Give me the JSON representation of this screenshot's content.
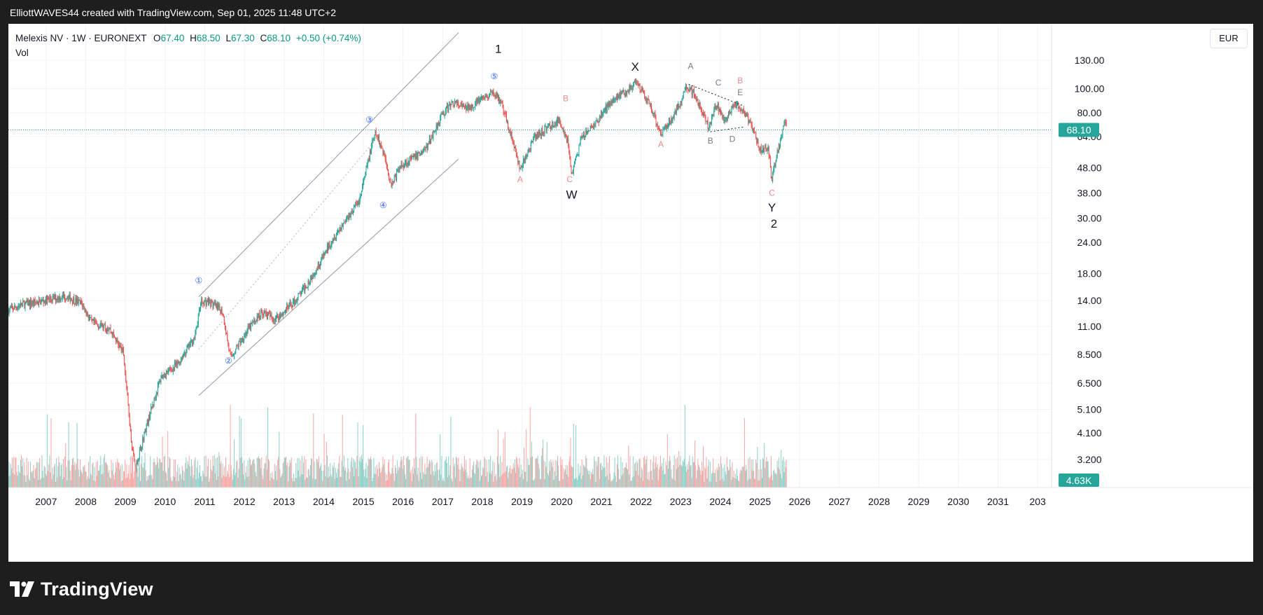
{
  "caption": "ElliottWAVES44 created with TradingView.com, Sep 01, 2025 11:48 UTC+2",
  "legend": {
    "symbol": "Melexis NV · 1W · EURONEXT",
    "o_label": "O",
    "o": "67.40",
    "h_label": "H",
    "h": "68.50",
    "l_label": "L",
    "l": "67.30",
    "c_label": "C",
    "c": "68.10",
    "change": "+0.50 (+0.74%)",
    "vol_label": "Vol"
  },
  "currency": "EUR",
  "price_badge": "68.10",
  "volume_badge": "4.63K",
  "logo_text": "TradingView",
  "colors": {
    "up": "#26a69a",
    "down": "#ef5350",
    "vol_up": "#8ed0c8",
    "vol_down": "#f5a7a5",
    "wave_blue": "#2962ff",
    "wave_red": "#f28c8c",
    "badge": "#26a69a"
  },
  "chart_data": {
    "type": "candlestick",
    "scale": "log",
    "currency": "EUR",
    "x_axis_years": [
      "2007",
      "2008",
      "2009",
      "2010",
      "2011",
      "2012",
      "2013",
      "2014",
      "2015",
      "2016",
      "2017",
      "2018",
      "2019",
      "2020",
      "2021",
      "2022",
      "2023",
      "2024",
      "2025",
      "2026",
      "2027",
      "2028",
      "2029",
      "2030",
      "2031",
      "203"
    ],
    "price_ticks": [
      "130.00",
      "100.00",
      "80.00",
      "64.00",
      "48.00",
      "38.00",
      "30.00",
      "24.00",
      "18.00",
      "14.00",
      "11.00",
      "8.500",
      "6.500",
      "5.100",
      "4.100",
      "3.200"
    ],
    "price_tick_values": [
      130,
      100,
      80,
      64,
      48,
      38,
      30,
      24,
      18,
      14,
      11,
      8.5,
      6.5,
      5.1,
      4.1,
      3.2
    ],
    "ylim": [
      2.85,
      150
    ],
    "xlim": [
      2006.05,
      2032.35
    ],
    "last_close": 68.1,
    "last_volume": "4.63K",
    "price_path": [
      [
        2006.05,
        12.8
      ],
      [
        2006.4,
        13.5
      ],
      [
        2006.8,
        13.8
      ],
      [
        2007.2,
        14.3
      ],
      [
        2007.5,
        14.6
      ],
      [
        2007.9,
        13.6
      ],
      [
        2008.15,
        11.4
      ],
      [
        2008.6,
        10.8
      ],
      [
        2008.95,
        8.6
      ],
      [
        2009.15,
        3.8
      ],
      [
        2009.25,
        2.95
      ],
      [
        2009.55,
        4.5
      ],
      [
        2009.9,
        6.9
      ],
      [
        2010.3,
        7.7
      ],
      [
        2010.75,
        10.0
      ],
      [
        2010.9,
        13.7
      ],
      [
        2011.1,
        13.9
      ],
      [
        2011.45,
        12.6
      ],
      [
        2011.65,
        8.2
      ],
      [
        2011.95,
        9.9
      ],
      [
        2012.2,
        11.3
      ],
      [
        2012.45,
        12.6
      ],
      [
        2012.75,
        11.8
      ],
      [
        2012.95,
        12.4
      ],
      [
        2013.3,
        14.1
      ],
      [
        2013.6,
        16.5
      ],
      [
        2013.95,
        20.5
      ],
      [
        2014.2,
        24.5
      ],
      [
        2014.55,
        29.5
      ],
      [
        2014.9,
        35.5
      ],
      [
        2015.2,
        58.0
      ],
      [
        2015.3,
        66.0
      ],
      [
        2015.5,
        56.0
      ],
      [
        2015.7,
        41.0
      ],
      [
        2015.95,
        49.0
      ],
      [
        2016.3,
        53.0
      ],
      [
        2016.6,
        58.0
      ],
      [
        2016.95,
        77.0
      ],
      [
        2017.25,
        88.0
      ],
      [
        2017.6,
        83.0
      ],
      [
        2017.95,
        90.0
      ],
      [
        2018.3,
        96.0
      ],
      [
        2018.45,
        89.0
      ],
      [
        2018.75,
        63.0
      ],
      [
        2018.95,
        47.0
      ],
      [
        2019.3,
        63.0
      ],
      [
        2019.65,
        70.0
      ],
      [
        2019.95,
        74.0
      ],
      [
        2020.15,
        62.0
      ],
      [
        2020.25,
        45.0
      ],
      [
        2020.5,
        63.0
      ],
      [
        2020.9,
        74.0
      ],
      [
        2021.25,
        90.0
      ],
      [
        2021.6,
        97.0
      ],
      [
        2021.85,
        104.0
      ],
      [
        2021.95,
        101.0
      ],
      [
        2022.25,
        84.0
      ],
      [
        2022.5,
        66.0
      ],
      [
        2022.75,
        75.0
      ],
      [
        2022.95,
        85.0
      ],
      [
        2023.15,
        103.0
      ],
      [
        2023.35,
        95.0
      ],
      [
        2023.7,
        70.0
      ],
      [
        2023.9,
        87.0
      ],
      [
        2024.1,
        73.0
      ],
      [
        2024.35,
        87.0
      ],
      [
        2024.6,
        80.0
      ],
      [
        2024.8,
        70.0
      ],
      [
        2025.0,
        57.0
      ],
      [
        2025.2,
        58.0
      ],
      [
        2025.3,
        43.0
      ],
      [
        2025.45,
        57.0
      ],
      [
        2025.55,
        64.0
      ],
      [
        2025.62,
        76.0
      ],
      [
        2025.68,
        68.1
      ]
    ],
    "elliott_labels": [
      {
        "text": "1",
        "t": 2018.4,
        "price": 139,
        "style": "black"
      },
      {
        "text": "⑤",
        "t": 2018.3,
        "price": 109,
        "style": "blue"
      },
      {
        "text": "③",
        "t": 2015.15,
        "price": 73,
        "style": "blue"
      },
      {
        "text": "④",
        "t": 2015.5,
        "price": 33,
        "style": "blue"
      },
      {
        "text": "①",
        "t": 2010.85,
        "price": 16.4,
        "style": "blue"
      },
      {
        "text": "②",
        "t": 2011.6,
        "price": 7.8,
        "style": "blue"
      },
      {
        "text": "A",
        "t": 2018.95,
        "price": 42,
        "style": "red"
      },
      {
        "text": "B",
        "t": 2020.1,
        "price": 89,
        "style": "red"
      },
      {
        "text": "C",
        "t": 2020.2,
        "price": 42,
        "style": "red"
      },
      {
        "text": "W",
        "t": 2020.25,
        "price": 36,
        "style": "black"
      },
      {
        "text": "X",
        "t": 2021.85,
        "price": 118,
        "style": "black"
      },
      {
        "text": "A",
        "t": 2022.5,
        "price": 58,
        "style": "red"
      },
      {
        "text": "A",
        "t": 2023.25,
        "price": 120,
        "style": "gray"
      },
      {
        "text": "C",
        "t": 2023.95,
        "price": 103,
        "style": "gray"
      },
      {
        "text": "B",
        "t": 2024.5,
        "price": 105,
        "style": "red"
      },
      {
        "text": "E",
        "t": 2024.5,
        "price": 94,
        "style": "gray"
      },
      {
        "text": "B",
        "t": 2023.75,
        "price": 60,
        "style": "gray"
      },
      {
        "text": "D",
        "t": 2024.3,
        "price": 61,
        "style": "gray"
      },
      {
        "text": "C",
        "t": 2025.3,
        "price": 37,
        "style": "red"
      },
      {
        "text": "Y",
        "t": 2025.3,
        "price": 32,
        "style": "black"
      },
      {
        "text": "2",
        "t": 2025.35,
        "price": 27.5,
        "style": "black"
      }
    ]
  }
}
